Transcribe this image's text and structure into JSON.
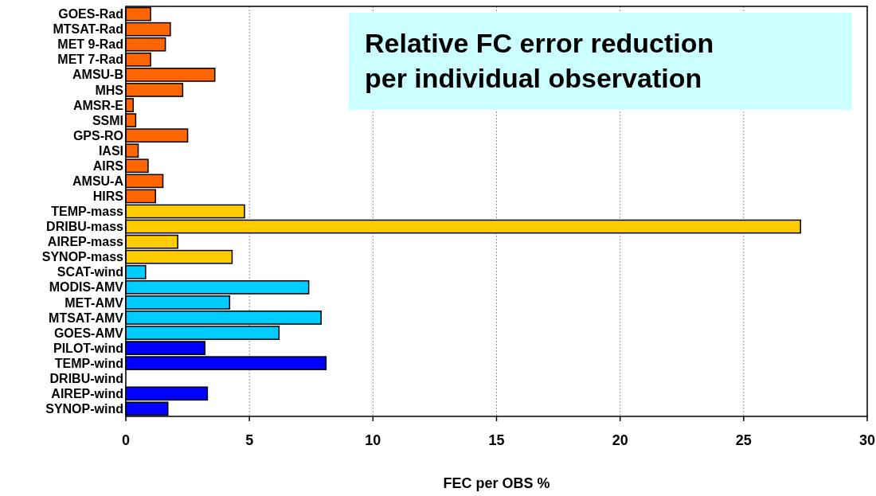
{
  "chart_data": {
    "type": "bar",
    "orientation": "horizontal",
    "title": "Relative FC error reduction per individual observation",
    "xlabel": "FEC per OBS %",
    "categories": [
      "GOES-Rad",
      "MTSAT-Rad",
      "MET 9-Rad",
      "MET 7-Rad",
      "AMSU-B",
      "MHS",
      "AMSR-E",
      "SSMI",
      "GPS-RO",
      "IASI",
      "AIRS",
      "AMSU-A",
      "HIRS",
      "TEMP-mass",
      "DRIBU-mass",
      "AIREP-mass",
      "SYNOP-mass",
      "SCAT-wind",
      "MODIS-AMV",
      "MET-AMV",
      "MTSAT-AMV",
      "GOES-AMV",
      "PILOT-wind",
      "TEMP-wind",
      "DRIBU-wind",
      "AIREP-wind",
      "SYNOP-wind"
    ],
    "values": [
      1.0,
      1.8,
      1.6,
      1.0,
      3.6,
      2.3,
      0.3,
      0.4,
      2.5,
      0.5,
      0.9,
      1.5,
      1.2,
      4.8,
      27.3,
      2.1,
      4.3,
      0.8,
      7.4,
      4.2,
      7.9,
      6.2,
      3.2,
      8.1,
      null,
      3.3,
      1.7
    ],
    "colors": [
      "#ff6600",
      "#ff6600",
      "#ff6600",
      "#ff6600",
      "#ff6600",
      "#ff6600",
      "#ff6600",
      "#ff6600",
      "#ff6600",
      "#ff6600",
      "#ff6600",
      "#ff6600",
      "#ff6600",
      "#ffcc00",
      "#ffcc00",
      "#ffcc00",
      "#ffcc00",
      "#00ccff",
      "#00ccff",
      "#00ccff",
      "#00ccff",
      "#00ccff",
      "#0000ff",
      "#0000ff",
      null,
      "#0000ff",
      "#0000ff"
    ],
    "xlim": [
      0,
      30
    ],
    "xticks": [
      0,
      5,
      10,
      15,
      20,
      25,
      30
    ],
    "grid": "x"
  }
}
